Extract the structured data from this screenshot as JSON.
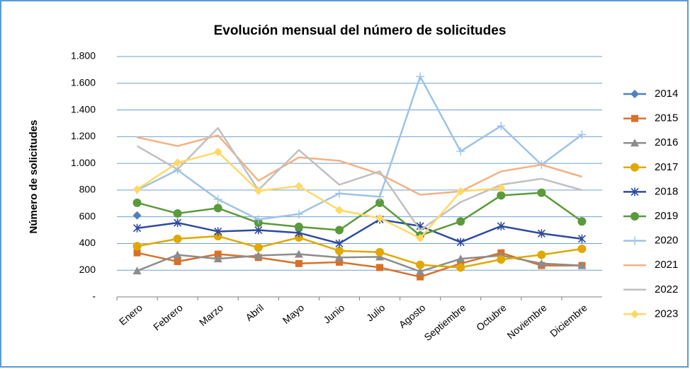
{
  "chart_data": {
    "type": "line",
    "title": "Evolución mensual del número de solicitudes",
    "y_label": "Número de solicitudes",
    "categories": [
      "Enero",
      "Febrero",
      "Marzo",
      "Abril",
      "Mayo",
      "Junio",
      "Julio",
      "Agosto",
      "Septiembre",
      "Octubre",
      "Noviembre",
      "Diciembre"
    ],
    "series": [
      {
        "name": "2014",
        "color": "#4f81bd",
        "marker": "diamond",
        "values": [
          610,
          null,
          null,
          null,
          null,
          null,
          null,
          null,
          null,
          null,
          null,
          null
        ]
      },
      {
        "name": "2015",
        "color": "#d8702a",
        "marker": "square",
        "values": [
          330,
          265,
          320,
          295,
          250,
          260,
          220,
          150,
          250,
          330,
          235,
          235
        ]
      },
      {
        "name": "2016",
        "color": "#8c8c8c",
        "marker": "triangle",
        "values": [
          195,
          315,
          285,
          310,
          320,
          295,
          300,
          190,
          285,
          310,
          250,
          235
        ]
      },
      {
        "name": "2017",
        "color": "#e0a800",
        "marker": "circle",
        "values": [
          380,
          435,
          455,
          370,
          445,
          345,
          335,
          240,
          220,
          280,
          315,
          360
        ]
      },
      {
        "name": "2018",
        "color": "#2e4a9e",
        "marker": "star",
        "values": [
          515,
          555,
          490,
          500,
          480,
          400,
          580,
          530,
          410,
          530,
          475,
          435
        ]
      },
      {
        "name": "2019",
        "color": "#5a9a3a",
        "marker": "circle",
        "values": [
          705,
          625,
          665,
          555,
          525,
          500,
          705,
          460,
          565,
          760,
          780,
          565
        ]
      },
      {
        "name": "2020",
        "color": "#9dc3e6",
        "marker": "plus",
        "values": [
          800,
          950,
          730,
          580,
          620,
          775,
          750,
          1650,
          1090,
          1280,
          990,
          1215
        ]
      },
      {
        "name": "2021",
        "color": "#f4b183",
        "marker": "none",
        "values": [
          1195,
          1130,
          1210,
          870,
          1045,
          1020,
          920,
          765,
          790,
          940,
          990,
          900
        ]
      },
      {
        "name": "2022",
        "color": "#c0c0c0",
        "marker": "none",
        "values": [
          1130,
          955,
          1265,
          800,
          1100,
          840,
          940,
          500,
          710,
          840,
          885,
          800
        ]
      },
      {
        "name": "2023",
        "color": "#ffd966",
        "marker": "diamond",
        "values": [
          805,
          1005,
          1085,
          795,
          830,
          650,
          590,
          440,
          790,
          815,
          null,
          null
        ]
      }
    ],
    "ylim": [
      0,
      1800
    ],
    "yticks": [
      {
        "value": 0,
        "label": "-"
      },
      200,
      400,
      600,
      800,
      {
        "value": 1000,
        "label": "1.000"
      },
      {
        "value": 1200,
        "label": "1.200"
      },
      {
        "value": 1400,
        "label": "1.400"
      },
      {
        "value": 1600,
        "label": "1.600"
      },
      {
        "value": 1800,
        "label": "1.800"
      }
    ],
    "grid": true,
    "legend": "right"
  }
}
